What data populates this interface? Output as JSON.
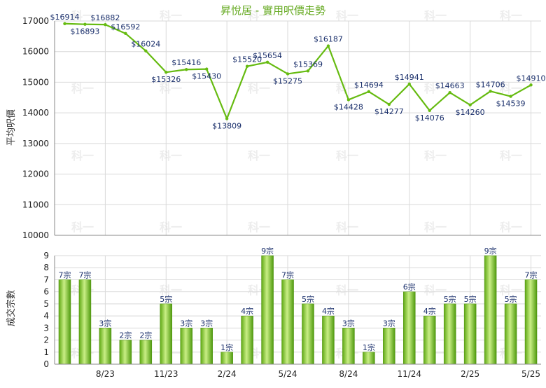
{
  "chart_data": [
    {
      "type": "line",
      "title": "昇悅居 - 實用呎價走勢",
      "ylabel": "平均呎價",
      "ylim": [
        10000,
        17000
      ],
      "yticks": [
        10000,
        11000,
        12000,
        13000,
        14000,
        15000,
        16000,
        17000
      ],
      "grid": true,
      "legend": "none",
      "watermark": "科一",
      "colors": {
        "line": "#66bb11",
        "label": "#1a2f6b",
        "title": "#66aa22",
        "grid": "#d9d9d9",
        "axis": "#888888"
      },
      "values": [
        16914,
        16893,
        16882,
        16592,
        16024,
        15326,
        15416,
        15430,
        13809,
        15520,
        15654,
        15275,
        15369,
        16187,
        14428,
        14694,
        14277,
        14941,
        14076,
        14663,
        14260,
        14706,
        14539,
        14910
      ],
      "data_labels": [
        "$16914",
        "$16893",
        "$16882",
        "$16592",
        "$16024",
        "$15326",
        "$15416",
        "$15430",
        "$13809",
        "$15520",
        "$15654",
        "$15275",
        "$15369",
        "$16187",
        "$14428",
        "$14694",
        "$14277",
        "$14941",
        "$14076",
        "$14663",
        "$14260",
        "$14706",
        "$14539",
        "$14910"
      ]
    },
    {
      "type": "bar",
      "ylabel": "成交宗數",
      "ylim": [
        0,
        9
      ],
      "yticks": [
        0,
        1,
        2,
        3,
        4,
        5,
        6,
        7,
        8,
        9
      ],
      "grid": true,
      "legend": "none",
      "colors": {
        "bar_light": "#cff08a",
        "bar_mid": "#8fd12a",
        "bar_dark": "#4f9a0e",
        "label": "#1a2f6b"
      },
      "categories": [
        "",
        "",
        "8/23",
        "",
        "",
        "11/23",
        "",
        "",
        "2/24",
        "",
        "",
        "5/24",
        "",
        "",
        "8/24",
        "",
        "",
        "11/24",
        "",
        "",
        "2/25",
        "",
        "",
        "5/25"
      ],
      "values": [
        7,
        7,
        3,
        2,
        2,
        5,
        3,
        3,
        1,
        4,
        9,
        7,
        5,
        4,
        3,
        1,
        3,
        6,
        4,
        5,
        5,
        9,
        5,
        7
      ],
      "data_labels": [
        "7宗",
        "7宗",
        "3宗",
        "2宗",
        "2宗",
        "5宗",
        "3宗",
        "3宗",
        "1宗",
        "4宗",
        "9宗",
        "7宗",
        "5宗",
        "4宗",
        "3宗",
        "1宗",
        "3宗",
        "6宗",
        "4宗",
        "5宗",
        "5宗",
        "9宗",
        "5宗",
        "7宗"
      ]
    }
  ]
}
